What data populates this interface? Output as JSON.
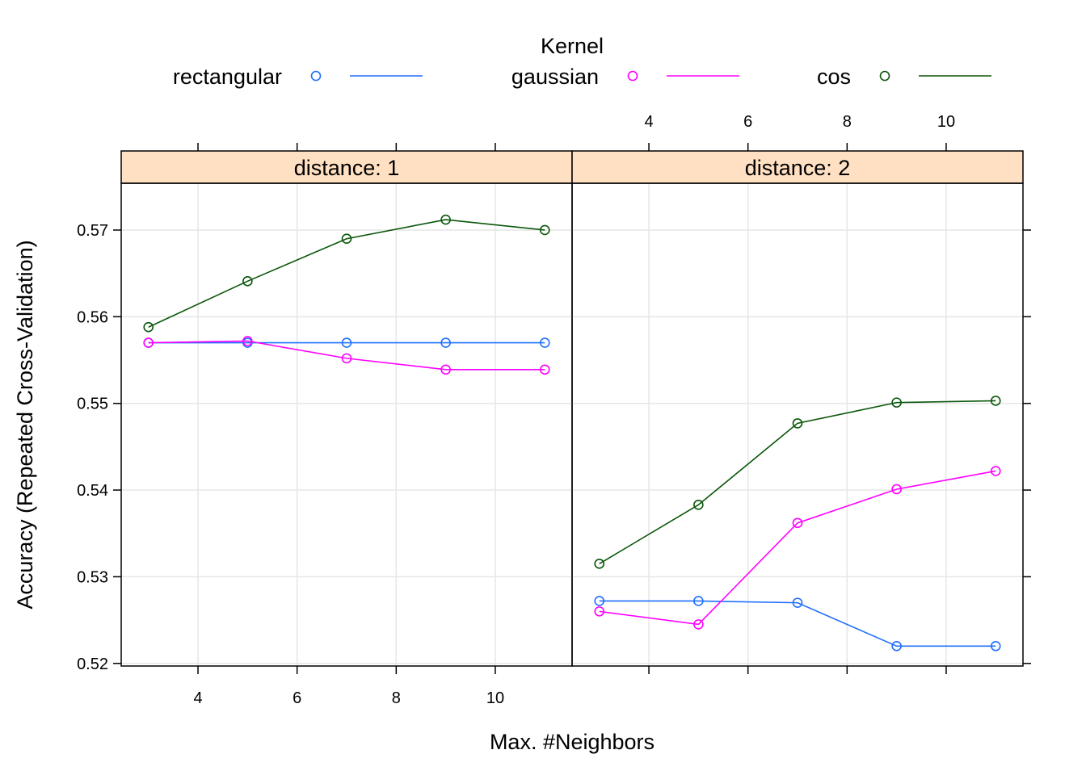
{
  "chart_data": {
    "type": "line",
    "legend": {
      "title": "Kernel",
      "placement": "top",
      "entries": [
        {
          "name": "rectangular",
          "color": "#1F6FFF"
        },
        {
          "name": "gaussian",
          "color": "#FF00FF"
        },
        {
          "name": "cos",
          "color": "#0B560B"
        }
      ]
    },
    "xlabel": "Max. #Neighbors",
    "ylabel": "Accuracy (Repeated Cross-Validation)",
    "xlim": [
      2.45,
      11.55
    ],
    "ylim": [
      0.5197,
      0.5754
    ],
    "x_ticks": [
      4,
      6,
      8,
      10
    ],
    "y_ticks": [
      0.52,
      0.53,
      0.54,
      0.55,
      0.56,
      0.57
    ],
    "y_tick_labels": [
      "0.52",
      "0.53",
      "0.54",
      "0.55",
      "0.56",
      "0.57"
    ],
    "grid": true,
    "strip_color": "#FFE0C2",
    "panels": [
      {
        "strip": "distance: 1",
        "x": [
          3,
          5,
          7,
          9,
          11
        ],
        "series": [
          {
            "name": "rectangular",
            "values": [
              0.557,
              0.557,
              0.557,
              0.557,
              0.557
            ]
          },
          {
            "name": "gaussian",
            "values": [
              0.557,
              0.5572,
              0.5552,
              0.5539,
              0.5539
            ]
          },
          {
            "name": "cos",
            "values": [
              0.5588,
              0.5641,
              0.569,
              0.5712,
              0.57
            ]
          }
        ]
      },
      {
        "strip": "distance: 2",
        "x": [
          3,
          5,
          7,
          9,
          11
        ],
        "series": [
          {
            "name": "rectangular",
            "values": [
              0.5272,
              0.5272,
              0.527,
              0.522,
              0.522
            ]
          },
          {
            "name": "gaussian",
            "values": [
              0.526,
              0.5245,
              0.5362,
              0.5401,
              0.5422
            ]
          },
          {
            "name": "cos",
            "values": [
              0.5315,
              0.5383,
              0.5477,
              0.5501,
              0.5503
            ]
          }
        ]
      }
    ]
  }
}
